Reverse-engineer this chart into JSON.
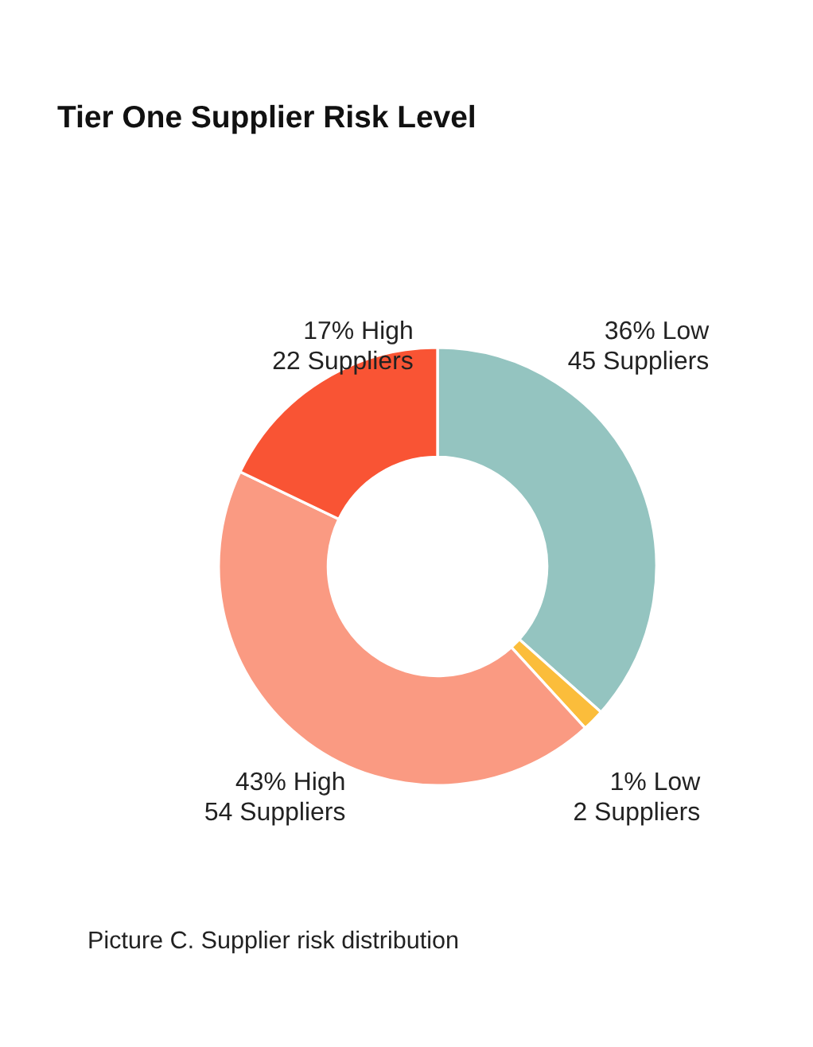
{
  "chart_data": {
    "type": "donut",
    "title": "Tier One Supplier Risk Level",
    "categories": [
      "36% Low\n45 Suppliers",
      "1% Low\n2 Suppliers",
      "43% High\n54 Suppliers",
      "17% High\n22 Suppliers"
    ],
    "values": [
      45,
      2,
      54,
      22
    ],
    "colors": [
      "#94c4c0",
      "#fbbd3b",
      "#fa9a82",
      "#f95434"
    ],
    "annotations": [
      "Picture C. Supplier risk distribution"
    ],
    "legend": false
  }
}
